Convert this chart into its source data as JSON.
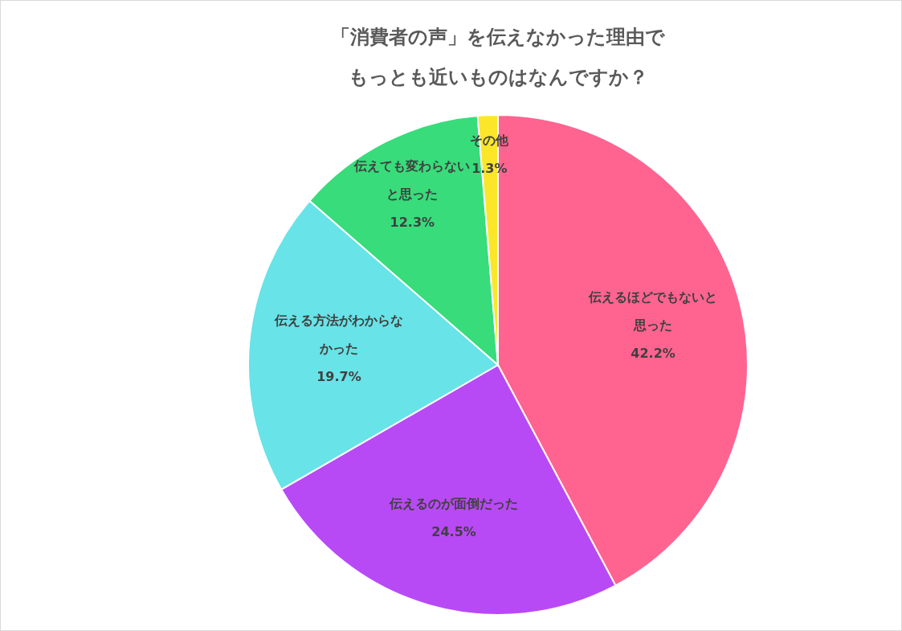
{
  "chart_data": {
    "type": "pie",
    "title": "「消費者の声」を伝えなかった理由でもっとも近いものはなんですか？",
    "categories": [
      "伝えるほどでもないと思った",
      "伝えるのが面倒だった",
      "伝える方法がわからなかった",
      "伝えても変わらないと思った",
      "その他"
    ],
    "values": [
      42.2,
      24.5,
      19.7,
      12.3,
      1.3
    ],
    "value_labels": [
      "42.2%",
      "24.5%",
      "19.7%",
      "12.3%",
      "1.3%"
    ],
    "colors": [
      "#ff6490",
      "#b84af5",
      "#68e3e8",
      "#38dc7a",
      "#fce62a"
    ],
    "legend": false
  }
}
